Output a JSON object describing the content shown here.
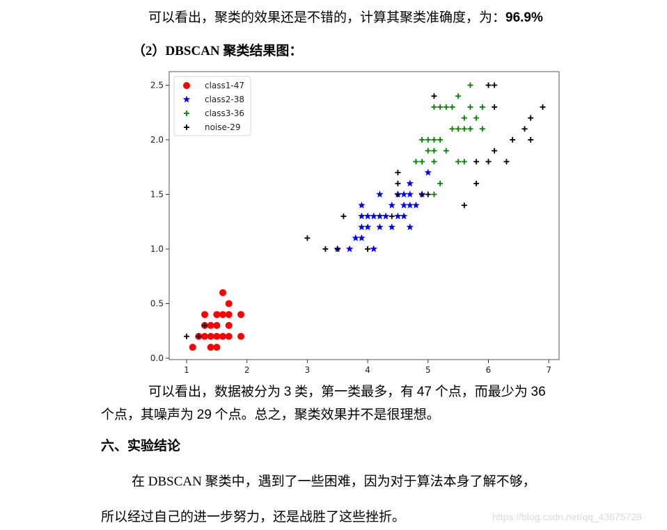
{
  "document": {
    "para1": {
      "text": "可以看出，聚类的效果还是不错的，计算其聚类准确度，为：",
      "accuracy": "96.9%"
    },
    "section_heading": {
      "prefix": "（2）",
      "text": "DBSCAN 聚类结果图："
    },
    "para2": {
      "line1_a": "可以看出，数据被分为 ",
      "n_classes": "3",
      "line1_b": " 类，第一类最多，有 ",
      "max_points": "47",
      "line1_c": " 个点，而最少为 ",
      "min_points": "36",
      "line2_a": "个点，其噪声为 ",
      "noise_points": "29",
      "line2_b": " 个点。总之，聚类效果并不是很理想。"
    },
    "section6_heading": "六、实验结论",
    "para3": {
      "line1": "在 DBSCAN 聚类中，遇到了一些困难，因为对于算法本身了解不够，",
      "line2": "所以经过自己的进一步努力，还是战胜了这些挫折。"
    },
    "watermark": "https://blog.csdn.net/qq_43675728"
  },
  "chart_data": {
    "type": "scatter",
    "title": "",
    "xlabel": "",
    "ylabel": "",
    "xlim": [
      0.8,
      7.2
    ],
    "ylim": [
      -0.1,
      2.6
    ],
    "xticks": [
      "1",
      "2",
      "3",
      "4",
      "5",
      "6",
      "7"
    ],
    "yticks": [
      "0.0",
      "0.5",
      "1.0",
      "1.5",
      "2.0",
      "2.5"
    ],
    "grid": false,
    "legend_position": "upper left",
    "series": [
      {
        "name": "class1-47",
        "marker": "circle",
        "color": "#ff0000",
        "points": [
          [
            1.6,
            0.6
          ],
          [
            1.7,
            0.5
          ],
          [
            1.3,
            0.4
          ],
          [
            1.5,
            0.4
          ],
          [
            1.6,
            0.4
          ],
          [
            1.7,
            0.4
          ],
          [
            1.9,
            0.4
          ],
          [
            1.3,
            0.3
          ],
          [
            1.4,
            0.3
          ],
          [
            1.5,
            0.3
          ],
          [
            1.7,
            0.3
          ],
          [
            1.2,
            0.2
          ],
          [
            1.3,
            0.2
          ],
          [
            1.4,
            0.2
          ],
          [
            1.5,
            0.2
          ],
          [
            1.6,
            0.2
          ],
          [
            1.7,
            0.2
          ],
          [
            1.9,
            0.2
          ],
          [
            1.1,
            0.1
          ],
          [
            1.4,
            0.1
          ],
          [
            1.5,
            0.1
          ]
        ]
      },
      {
        "name": "class2-38",
        "marker": "star",
        "color": "#0000ff",
        "points": [
          [
            3.5,
            1.0
          ],
          [
            3.7,
            1.0
          ],
          [
            4.1,
            1.0
          ],
          [
            3.8,
            1.1
          ],
          [
            3.9,
            1.1
          ],
          [
            3.9,
            1.2
          ],
          [
            4.0,
            1.2
          ],
          [
            4.2,
            1.2
          ],
          [
            4.4,
            1.2
          ],
          [
            4.7,
            1.2
          ],
          [
            3.9,
            1.3
          ],
          [
            4.0,
            1.3
          ],
          [
            4.1,
            1.3
          ],
          [
            4.2,
            1.3
          ],
          [
            4.3,
            1.3
          ],
          [
            4.5,
            1.3
          ],
          [
            4.6,
            1.3
          ],
          [
            3.9,
            1.4
          ],
          [
            4.4,
            1.4
          ],
          [
            4.6,
            1.4
          ],
          [
            4.7,
            1.4
          ],
          [
            4.8,
            1.4
          ],
          [
            4.2,
            1.5
          ],
          [
            4.5,
            1.5
          ],
          [
            4.6,
            1.5
          ],
          [
            4.7,
            1.5
          ],
          [
            4.9,
            1.5
          ],
          [
            4.7,
            1.6
          ],
          [
            5.0,
            1.7
          ]
        ]
      },
      {
        "name": "class3-36",
        "marker": "plus",
        "color": "#008000",
        "points": [
          [
            5.7,
            2.5
          ],
          [
            5.5,
            2.4
          ],
          [
            5.1,
            2.3
          ],
          [
            5.2,
            2.3
          ],
          [
            5.3,
            2.3
          ],
          [
            5.4,
            2.3
          ],
          [
            5.7,
            2.3
          ],
          [
            5.9,
            2.3
          ],
          [
            5.6,
            2.2
          ],
          [
            5.8,
            2.2
          ],
          [
            5.4,
            2.1
          ],
          [
            5.5,
            2.1
          ],
          [
            5.6,
            2.1
          ],
          [
            5.7,
            2.1
          ],
          [
            5.9,
            2.1
          ],
          [
            4.9,
            2.0
          ],
          [
            5.0,
            2.0
          ],
          [
            5.1,
            2.0
          ],
          [
            5.2,
            2.0
          ],
          [
            5.0,
            1.9
          ],
          [
            5.1,
            1.9
          ],
          [
            5.3,
            1.9
          ],
          [
            4.8,
            1.8
          ],
          [
            4.9,
            1.8
          ],
          [
            5.1,
            1.8
          ],
          [
            5.5,
            1.8
          ],
          [
            5.6,
            1.8
          ],
          [
            5.1,
            1.5
          ],
          [
            5.2,
            1.6
          ]
        ]
      },
      {
        "name": "noise-29",
        "marker": "plus",
        "color": "#000000",
        "points": [
          [
            1.0,
            0.2
          ],
          [
            1.2,
            0.2
          ],
          [
            1.3,
            0.3
          ],
          [
            3.0,
            1.1
          ],
          [
            3.3,
            1.0
          ],
          [
            3.5,
            1.0
          ],
          [
            4.0,
            1.0
          ],
          [
            3.6,
            1.3
          ],
          [
            4.4,
            1.3
          ],
          [
            4.5,
            1.5
          ],
          [
            4.5,
            1.6
          ],
          [
            4.5,
            1.7
          ],
          [
            5.0,
            1.5
          ],
          [
            4.9,
            1.5
          ],
          [
            5.6,
            1.4
          ],
          [
            5.8,
            1.6
          ],
          [
            5.1,
            2.4
          ],
          [
            6.0,
            2.5
          ],
          [
            6.1,
            2.5
          ],
          [
            6.1,
            2.3
          ],
          [
            6.9,
            2.3
          ],
          [
            6.7,
            2.2
          ],
          [
            6.6,
            2.1
          ],
          [
            6.4,
            2.0
          ],
          [
            6.7,
            2.0
          ],
          [
            6.1,
            1.9
          ],
          [
            5.8,
            1.8
          ],
          [
            6.0,
            1.8
          ],
          [
            6.3,
            1.8
          ]
        ]
      }
    ]
  }
}
